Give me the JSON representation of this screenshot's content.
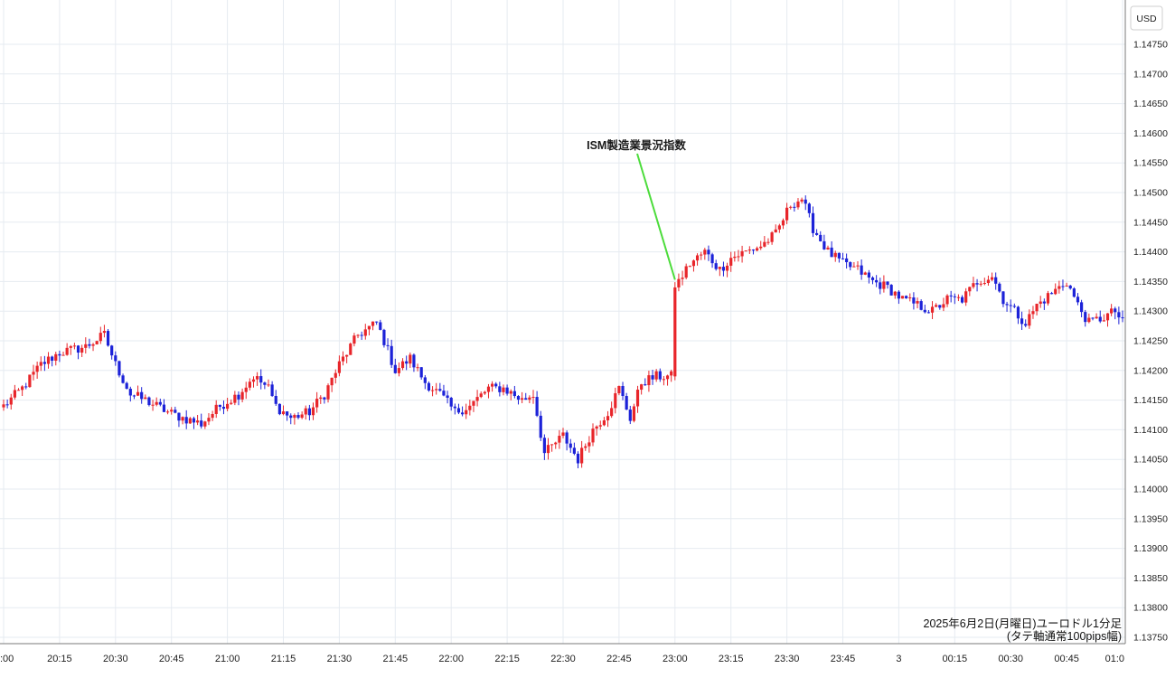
{
  "chart_data": {
    "type": "candlestick",
    "currency_label": "USD",
    "annotation": {
      "text": "ISM製造業景況指数",
      "time": "23:00",
      "price": 1.1435
    },
    "caption_line1": "2025年6月2日(月曜日)ユーロドル1分足",
    "caption_line2": "(タテ軸通常100pips幅)",
    "y_ticks": [
      "1.14750",
      "1.14700",
      "1.14650",
      "1.14600",
      "1.14550",
      "1.14500",
      "1.14450",
      "1.14400",
      "1.14350",
      "1.14300",
      "1.14250",
      "1.14200",
      "1.14150",
      "1.14100",
      "1.14050",
      "1.14000",
      "1.13950",
      "1.13900",
      "1.13850",
      "1.13800",
      "1.13750"
    ],
    "x_ticks": [
      ":00",
      "20:15",
      "20:30",
      "20:45",
      "21:00",
      "21:15",
      "21:30",
      "21:45",
      "22:00",
      "22:15",
      "22:30",
      "22:45",
      "23:00",
      "23:15",
      "23:30",
      "23:45",
      "3",
      "00:15",
      "00:30",
      "00:45",
      "01:0"
    ],
    "ylim": [
      1.1372,
      1.1479
    ],
    "grid": true,
    "up_color": "#e8252a",
    "down_color": "#1c22d8",
    "annotation_line_color": "#4cdc3b",
    "close_path": [
      [
        "20:00",
        1.1414
      ],
      [
        "20:05",
        1.1417
      ],
      [
        "20:10",
        1.1421
      ],
      [
        "20:15",
        1.1423
      ],
      [
        "20:22",
        1.1424
      ],
      [
        "20:27",
        1.1426
      ],
      [
        "20:30",
        1.1421
      ],
      [
        "20:34",
        1.1416
      ],
      [
        "20:38",
        1.1415
      ],
      [
        "20:44",
        1.1413
      ],
      [
        "20:48",
        1.1412
      ],
      [
        "20:53",
        1.1411
      ],
      [
        "20:58",
        1.1414
      ],
      [
        "21:03",
        1.1416
      ],
      [
        "21:07",
        1.1419
      ],
      [
        "21:11",
        1.1417
      ],
      [
        "21:13",
        1.1414
      ],
      [
        "21:17",
        1.1412
      ],
      [
        "21:22",
        1.1413
      ],
      [
        "21:26",
        1.1416
      ],
      [
        "21:30",
        1.1421
      ],
      [
        "21:35",
        1.1426
      ],
      [
        "21:40",
        1.1428
      ],
      [
        "21:42",
        1.1425
      ],
      [
        "21:45",
        1.142
      ],
      [
        "21:49",
        1.1422
      ],
      [
        "21:53",
        1.1418
      ],
      [
        "21:57",
        1.1416
      ],
      [
        "22:01",
        1.1413
      ],
      [
        "22:05",
        1.1414
      ],
      [
        "22:10",
        1.1417
      ],
      [
        "22:14",
        1.1417
      ],
      [
        "22:19",
        1.1415
      ],
      [
        "22:22",
        1.1416
      ],
      [
        "22:25",
        1.1406
      ],
      [
        "22:30",
        1.1409
      ],
      [
        "22:34",
        1.1405
      ],
      [
        "22:38",
        1.141
      ],
      [
        "22:42",
        1.1413
      ],
      [
        "22:45",
        1.1417
      ],
      [
        "22:48",
        1.1412
      ],
      [
        "22:51",
        1.1418
      ],
      [
        "22:55",
        1.1419
      ],
      [
        "22:59",
        1.1419
      ],
      [
        "23:00",
        1.1434
      ],
      [
        "23:04",
        1.1438
      ],
      [
        "23:08",
        1.144
      ],
      [
        "23:12",
        1.1437
      ],
      [
        "23:15",
        1.1439
      ],
      [
        "23:19",
        1.144
      ],
      [
        "23:23",
        1.1441
      ],
      [
        "23:27",
        1.1443
      ],
      [
        "23:31",
        1.1448
      ],
      [
        "23:34",
        1.1449
      ],
      [
        "23:37",
        1.1444
      ],
      [
        "23:41",
        1.144
      ],
      [
        "23:45",
        1.1438
      ],
      [
        "23:49",
        1.1437
      ],
      [
        "23:53",
        1.1435
      ],
      [
        "23:57",
        1.1434
      ],
      [
        "00:01",
        1.1432
      ],
      [
        "00:05",
        1.1431
      ],
      [
        "00:09",
        1.143
      ],
      [
        "00:13",
        1.1432
      ],
      [
        "00:17",
        1.1432
      ],
      [
        "00:21",
        1.1435
      ],
      [
        "00:25",
        1.1436
      ],
      [
        "00:28",
        1.1432
      ],
      [
        "00:31",
        1.143
      ],
      [
        "00:34",
        1.1428
      ],
      [
        "00:37",
        1.1431
      ],
      [
        "00:41",
        1.1433
      ],
      [
        "00:45",
        1.1435
      ],
      [
        "00:48",
        1.1431
      ],
      [
        "00:51",
        1.1428
      ],
      [
        "00:55",
        1.1429
      ],
      [
        "00:58",
        1.143
      ],
      [
        "01:00",
        1.1428
      ]
    ]
  }
}
